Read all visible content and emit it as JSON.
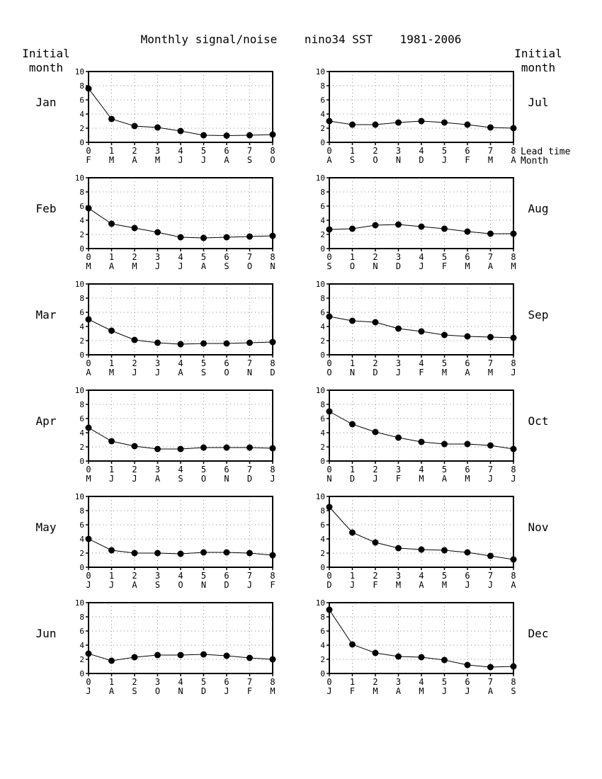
{
  "title": "Monthly signal/noise    nino34 SST    1981-2006",
  "left_header": [
    "Initial",
    "month"
  ],
  "right_header": [
    "Initial",
    "month"
  ],
  "lead_time_label": "Lead time",
  "month_label": "Month",
  "chart_data": [
    {
      "type": "line",
      "initial_month": "Jan",
      "column": "left",
      "x": [
        0,
        1,
        2,
        3,
        4,
        5,
        6,
        7,
        8
      ],
      "x_month_labels": [
        "F",
        "M",
        "A",
        "M",
        "J",
        "J",
        "A",
        "S",
        "O"
      ],
      "y": [
        7.6,
        3.3,
        2.3,
        2.1,
        1.6,
        1.0,
        0.95,
        1.0,
        1.1
      ],
      "ylim": [
        0,
        10
      ],
      "y_ticks": [
        0,
        2,
        4,
        6,
        8,
        10
      ]
    },
    {
      "type": "line",
      "initial_month": "Feb",
      "column": "left",
      "x": [
        0,
        1,
        2,
        3,
        4,
        5,
        6,
        7,
        8
      ],
      "x_month_labels": [
        "M",
        "A",
        "M",
        "J",
        "J",
        "A",
        "S",
        "O",
        "N"
      ],
      "y": [
        5.7,
        3.5,
        2.9,
        2.3,
        1.6,
        1.5,
        1.6,
        1.7,
        1.8
      ],
      "ylim": [
        0,
        10
      ],
      "y_ticks": [
        0,
        2,
        4,
        6,
        8,
        10
      ]
    },
    {
      "type": "line",
      "initial_month": "Mar",
      "column": "left",
      "x": [
        0,
        1,
        2,
        3,
        4,
        5,
        6,
        7,
        8
      ],
      "x_month_labels": [
        "A",
        "M",
        "J",
        "J",
        "A",
        "S",
        "O",
        "N",
        "D"
      ],
      "y": [
        5.0,
        3.4,
        2.1,
        1.7,
        1.5,
        1.6,
        1.6,
        1.7,
        1.8
      ],
      "ylim": [
        0,
        10
      ],
      "y_ticks": [
        0,
        2,
        4,
        6,
        8,
        10
      ]
    },
    {
      "type": "line",
      "initial_month": "Apr",
      "column": "left",
      "x": [
        0,
        1,
        2,
        3,
        4,
        5,
        6,
        7,
        8
      ],
      "x_month_labels": [
        "M",
        "J",
        "J",
        "A",
        "S",
        "O",
        "N",
        "D",
        "J"
      ],
      "y": [
        4.7,
        2.8,
        2.1,
        1.7,
        1.7,
        1.9,
        1.9,
        1.9,
        1.8
      ],
      "ylim": [
        0,
        10
      ],
      "y_ticks": [
        0,
        2,
        4,
        6,
        8,
        10
      ]
    },
    {
      "type": "line",
      "initial_month": "May",
      "column": "left",
      "x": [
        0,
        1,
        2,
        3,
        4,
        5,
        6,
        7,
        8
      ],
      "x_month_labels": [
        "J",
        "J",
        "A",
        "S",
        "O",
        "N",
        "D",
        "J",
        "F"
      ],
      "y": [
        4.0,
        2.4,
        2.0,
        2.0,
        1.9,
        2.1,
        2.1,
        2.0,
        1.7
      ],
      "ylim": [
        0,
        10
      ],
      "y_ticks": [
        0,
        2,
        4,
        6,
        8,
        10
      ]
    },
    {
      "type": "line",
      "initial_month": "Jun",
      "column": "left",
      "x": [
        0,
        1,
        2,
        3,
        4,
        5,
        6,
        7,
        8
      ],
      "x_month_labels": [
        "J",
        "A",
        "S",
        "O",
        "N",
        "D",
        "J",
        "F",
        "M"
      ],
      "y": [
        2.8,
        1.8,
        2.3,
        2.6,
        2.6,
        2.7,
        2.5,
        2.2,
        2.0
      ],
      "ylim": [
        0,
        10
      ],
      "y_ticks": [
        0,
        2,
        4,
        6,
        8,
        10
      ]
    },
    {
      "type": "line",
      "initial_month": "Jul",
      "column": "right",
      "x": [
        0,
        1,
        2,
        3,
        4,
        5,
        6,
        7,
        8
      ],
      "x_month_labels": [
        "A",
        "S",
        "O",
        "N",
        "D",
        "J",
        "F",
        "M",
        "A"
      ],
      "y": [
        3.0,
        2.5,
        2.5,
        2.8,
        3.0,
        2.8,
        2.5,
        2.1,
        2.0
      ],
      "ylim": [
        0,
        10
      ],
      "y_ticks": [
        0,
        2,
        4,
        6,
        8,
        10
      ]
    },
    {
      "type": "line",
      "initial_month": "Aug",
      "column": "right",
      "x": [
        0,
        1,
        2,
        3,
        4,
        5,
        6,
        7,
        8
      ],
      "x_month_labels": [
        "S",
        "O",
        "N",
        "D",
        "J",
        "F",
        "M",
        "A",
        "M"
      ],
      "y": [
        2.7,
        2.8,
        3.3,
        3.4,
        3.1,
        2.8,
        2.4,
        2.1,
        2.1
      ],
      "ylim": [
        0,
        10
      ],
      "y_ticks": [
        0,
        2,
        4,
        6,
        8,
        10
      ]
    },
    {
      "type": "line",
      "initial_month": "Sep",
      "column": "right",
      "x": [
        0,
        1,
        2,
        3,
        4,
        5,
        6,
        7,
        8
      ],
      "x_month_labels": [
        "O",
        "N",
        "D",
        "J",
        "F",
        "M",
        "A",
        "M",
        "J"
      ],
      "y": [
        5.4,
        4.8,
        4.6,
        3.7,
        3.3,
        2.8,
        2.6,
        2.5,
        2.4
      ],
      "ylim": [
        0,
        10
      ],
      "y_ticks": [
        0,
        2,
        4,
        6,
        8,
        10
      ]
    },
    {
      "type": "line",
      "initial_month": "Oct",
      "column": "right",
      "x": [
        0,
        1,
        2,
        3,
        4,
        5,
        6,
        7,
        8
      ],
      "x_month_labels": [
        "N",
        "D",
        "J",
        "F",
        "M",
        "A",
        "M",
        "J",
        "J"
      ],
      "y": [
        7.0,
        5.2,
        4.1,
        3.3,
        2.7,
        2.4,
        2.4,
        2.2,
        1.7
      ],
      "ylim": [
        0,
        10
      ],
      "y_ticks": [
        0,
        2,
        4,
        6,
        8,
        10
      ]
    },
    {
      "type": "line",
      "initial_month": "Nov",
      "column": "right",
      "x": [
        0,
        1,
        2,
        3,
        4,
        5,
        6,
        7,
        8
      ],
      "x_month_labels": [
        "D",
        "J",
        "F",
        "M",
        "A",
        "M",
        "J",
        "J",
        "A"
      ],
      "y": [
        8.5,
        4.9,
        3.5,
        2.7,
        2.5,
        2.4,
        2.1,
        1.6,
        1.1
      ],
      "ylim": [
        0,
        10
      ],
      "y_ticks": [
        0,
        2,
        4,
        6,
        8,
        10
      ]
    },
    {
      "type": "line",
      "initial_month": "Dec",
      "column": "right",
      "x": [
        0,
        1,
        2,
        3,
        4,
        5,
        6,
        7,
        8
      ],
      "x_month_labels": [
        "J",
        "F",
        "M",
        "A",
        "M",
        "J",
        "J",
        "A",
        "S"
      ],
      "y": [
        9.0,
        4.1,
        2.9,
        2.4,
        2.3,
        1.9,
        1.2,
        0.9,
        1.0
      ],
      "ylim": [
        0,
        10
      ],
      "y_ticks": [
        0,
        2,
        4,
        6,
        8,
        10
      ]
    }
  ]
}
